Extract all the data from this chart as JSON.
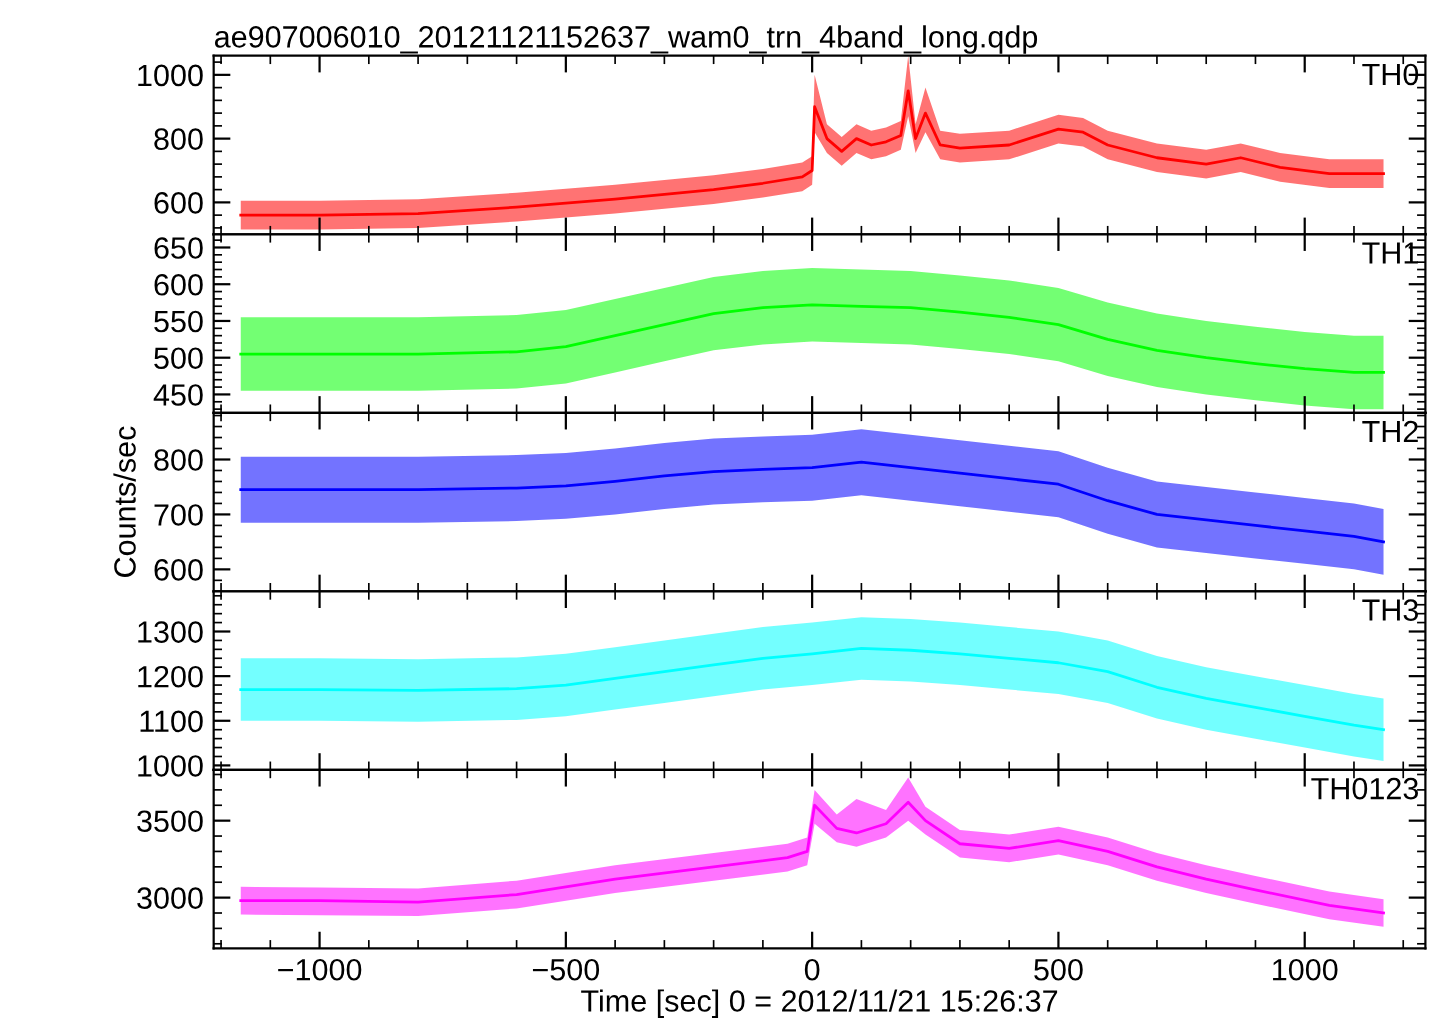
{
  "chart_data": [
    {
      "type": "line",
      "title": "ae907006010_20121121152637_wam0_trn_4band_long.qdp",
      "tick_labels": "y",
      "xlim": [
        -1215,
        1245
      ],
      "ylim": [
        500,
        1060
      ],
      "yticks": [
        600,
        800,
        1000
      ],
      "series": [
        {
          "name": "TH0",
          "color": "#ff0000",
          "x": [
            -1160,
            -1000,
            -800,
            -600,
            -400,
            -200,
            -100,
            -20,
            0,
            5,
            30,
            60,
            90,
            120,
            150,
            180,
            195,
            210,
            230,
            260,
            300,
            400,
            500,
            550,
            600,
            700,
            800,
            870,
            950,
            1050,
            1160
          ],
          "values": [
            560,
            560,
            565,
            585,
            610,
            640,
            660,
            680,
            700,
            900,
            800,
            760,
            800,
            780,
            790,
            810,
            950,
            800,
            880,
            780,
            770,
            780,
            830,
            820,
            780,
            740,
            720,
            740,
            710,
            690,
            690
          ],
          "lower": [
            515,
            515,
            520,
            540,
            565,
            595,
            615,
            635,
            655,
            820,
            755,
            715,
            755,
            735,
            745,
            765,
            870,
            755,
            820,
            735,
            725,
            735,
            785,
            775,
            735,
            695,
            675,
            695,
            665,
            645,
            645
          ],
          "upper": [
            605,
            605,
            610,
            630,
            655,
            685,
            705,
            725,
            745,
            1000,
            845,
            805,
            845,
            825,
            835,
            855,
            1060,
            845,
            960,
            825,
            815,
            825,
            875,
            865,
            825,
            785,
            765,
            785,
            755,
            735,
            735
          ]
        }
      ]
    },
    {
      "type": "line",
      "tick_labels": "y",
      "xlim": [
        -1215,
        1245
      ],
      "ylim": [
        425,
        668
      ],
      "yticks": [
        450,
        500,
        550,
        600,
        650
      ],
      "series": [
        {
          "name": "TH1",
          "color": "#00ff00",
          "x": [
            -1160,
            -1000,
            -800,
            -600,
            -500,
            -400,
            -300,
            -200,
            -100,
            0,
            100,
            200,
            300,
            400,
            500,
            600,
            700,
            800,
            900,
            1000,
            1100,
            1160
          ],
          "values": [
            505,
            505,
            505,
            508,
            515,
            530,
            545,
            560,
            568,
            572,
            570,
            568,
            562,
            555,
            545,
            525,
            510,
            500,
            492,
            485,
            480,
            480
          ],
          "lower": [
            455,
            455,
            455,
            458,
            465,
            480,
            495,
            510,
            518,
            522,
            520,
            518,
            512,
            505,
            495,
            475,
            460,
            450,
            442,
            435,
            430,
            430
          ],
          "upper": [
            555,
            555,
            555,
            558,
            565,
            580,
            595,
            610,
            618,
            622,
            620,
            618,
            612,
            605,
            595,
            575,
            560,
            550,
            542,
            535,
            530,
            530
          ]
        }
      ]
    },
    {
      "type": "line",
      "tick_labels": "y",
      "ylabel": "Counts/sec",
      "xlim": [
        -1215,
        1245
      ],
      "ylim": [
        560,
        885
      ],
      "yticks": [
        600,
        700,
        800
      ],
      "series": [
        {
          "name": "TH2",
          "color": "#0000ff",
          "x": [
            -1160,
            -1000,
            -800,
            -600,
            -500,
            -400,
            -300,
            -200,
            -100,
            0,
            100,
            200,
            300,
            400,
            500,
            600,
            700,
            800,
            900,
            1000,
            1100,
            1160
          ],
          "values": [
            745,
            745,
            745,
            748,
            752,
            760,
            770,
            778,
            782,
            785,
            795,
            785,
            775,
            765,
            755,
            725,
            700,
            690,
            680,
            670,
            660,
            650
          ],
          "lower": [
            685,
            685,
            685,
            688,
            692,
            700,
            710,
            718,
            722,
            725,
            735,
            725,
            715,
            705,
            695,
            665,
            640,
            630,
            620,
            610,
            600,
            590
          ],
          "upper": [
            805,
            805,
            805,
            808,
            812,
            820,
            830,
            838,
            842,
            845,
            855,
            845,
            835,
            825,
            815,
            785,
            760,
            750,
            740,
            730,
            720,
            710
          ]
        }
      ]
    },
    {
      "type": "line",
      "tick_labels": "y",
      "xlim": [
        -1215,
        1245
      ],
      "ylim": [
        990,
        1390
      ],
      "yticks": [
        1000,
        1100,
        1200,
        1300
      ],
      "series": [
        {
          "name": "TH3",
          "color": "#00ffff",
          "x": [
            -1160,
            -1000,
            -800,
            -600,
            -500,
            -400,
            -300,
            -200,
            -100,
            0,
            100,
            200,
            300,
            400,
            500,
            600,
            700,
            800,
            900,
            1000,
            1100,
            1160
          ],
          "values": [
            1170,
            1170,
            1168,
            1172,
            1180,
            1195,
            1210,
            1225,
            1240,
            1250,
            1262,
            1258,
            1250,
            1240,
            1230,
            1210,
            1175,
            1150,
            1130,
            1110,
            1090,
            1080
          ],
          "lower": [
            1100,
            1100,
            1098,
            1102,
            1110,
            1125,
            1140,
            1155,
            1170,
            1180,
            1192,
            1188,
            1180,
            1170,
            1160,
            1140,
            1105,
            1080,
            1060,
            1040,
            1020,
            1010
          ],
          "upper": [
            1240,
            1240,
            1238,
            1242,
            1250,
            1265,
            1280,
            1295,
            1310,
            1320,
            1332,
            1328,
            1320,
            1310,
            1300,
            1280,
            1245,
            1220,
            1200,
            1180,
            1160,
            1150
          ]
        }
      ]
    },
    {
      "type": "line",
      "xlabel": "Time [sec] 0 = 2012/11/21 15:26:37",
      "xlim": [
        -1215,
        1245
      ],
      "xticks": [
        {
          "value": -1000,
          "label": "−1000"
        },
        {
          "value": -500,
          "label": "−500"
        },
        0,
        500,
        1000
      ],
      "ylim": [
        2670,
        3830
      ],
      "yticks": [
        3000,
        3500
      ],
      "series": [
        {
          "name": "TH0123",
          "color": "#ff00ff",
          "x": [
            -1160,
            -1000,
            -800,
            -600,
            -400,
            -200,
            -50,
            -10,
            5,
            50,
            90,
            150,
            195,
            230,
            300,
            400,
            500,
            600,
            700,
            800,
            900,
            1050,
            1160
          ],
          "values": [
            2980,
            2980,
            2970,
            3020,
            3120,
            3200,
            3260,
            3300,
            3600,
            3450,
            3420,
            3480,
            3620,
            3500,
            3350,
            3320,
            3370,
            3300,
            3200,
            3120,
            3050,
            2950,
            2900
          ],
          "lower": [
            2890,
            2885,
            2880,
            2930,
            3030,
            3110,
            3170,
            3210,
            3480,
            3360,
            3330,
            3390,
            3500,
            3410,
            3260,
            3230,
            3280,
            3210,
            3110,
            3030,
            2960,
            2860,
            2810
          ],
          "upper": [
            3070,
            3065,
            3060,
            3110,
            3210,
            3290,
            3350,
            3390,
            3700,
            3540,
            3640,
            3570,
            3780,
            3590,
            3440,
            3410,
            3460,
            3390,
            3290,
            3210,
            3140,
            3040,
            2990
          ]
        }
      ]
    }
  ]
}
